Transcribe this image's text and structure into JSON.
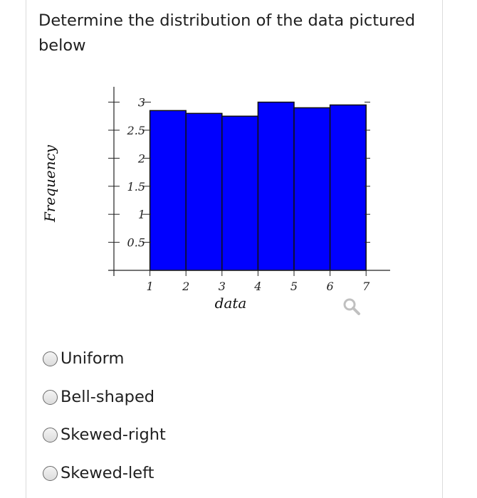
{
  "question": {
    "text": "Determine the distribution of the data pictured below"
  },
  "chart_data": {
    "type": "bar",
    "x": [
      1,
      2,
      3,
      4,
      5,
      6
    ],
    "bin_width": 1,
    "values": [
      2.85,
      2.8,
      2.75,
      3.0,
      2.9,
      2.95
    ],
    "xlabel": "data",
    "ylabel": "Frequency",
    "x_ticks": [
      "1",
      "2",
      "3",
      "4",
      "5",
      "6",
      "7"
    ],
    "y_ticks": [
      "0.5",
      "1",
      "1.5",
      "2",
      "2.5",
      "3"
    ],
    "xlim": [
      0,
      7
    ],
    "ylim": [
      0,
      3.1
    ],
    "bar_color": "#0000ff",
    "grid": false
  },
  "zoom_icon": {
    "icon": "magnifier-icon",
    "color": "#c0c0c0"
  },
  "options": [
    {
      "label": "Uniform"
    },
    {
      "label": "Bell-shaped"
    },
    {
      "label": "Skewed-right"
    },
    {
      "label": "Skewed-left"
    }
  ]
}
